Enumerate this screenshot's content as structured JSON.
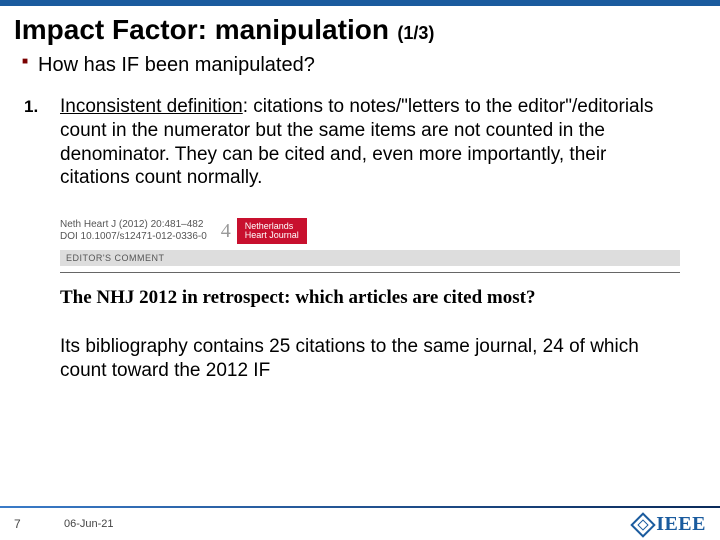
{
  "colors": {
    "accent_bar": "#1a5b9e",
    "bullet_marker": "#7a0000",
    "journal_red": "#c8102e",
    "footer_grad_from": "#3a7bc8",
    "footer_grad_to": "#0a2a5a"
  },
  "title": {
    "main": "Impact Factor: manipulation",
    "counter": "(1/3)"
  },
  "bullet": {
    "text": "How has IF been manipulated?"
  },
  "item1": {
    "marker": "1.",
    "term": "Inconsistent definition",
    "rest": ": citations to notes/\"letters to the editor\"/editorials count in the numerator but the same items are not counted in the denominator. They can be cited and, even more importantly, their citations count normally."
  },
  "figure": {
    "meta_line1": "Neth Heart J (2012) 20:481–482",
    "meta_line2": "DOI 10.1007/s12471-012-0336-0",
    "logo_num": "4",
    "logo_top": "Netherlands",
    "logo_bot": "Heart Journal",
    "bar_label": "EDITOR'S COMMENT",
    "headline": "The NHJ 2012 in retrospect: which articles are cited most?"
  },
  "followup": "Its bibliography contains 25 citations to the same journal, 24 of which count toward the 2012 IF",
  "footer": {
    "page": "7",
    "date": "06-Jun-21",
    "org": "IEEE"
  }
}
